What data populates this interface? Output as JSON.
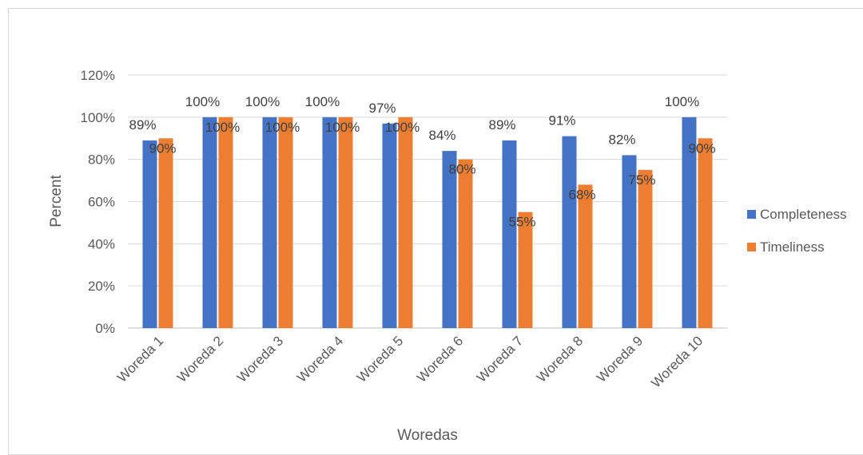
{
  "chart_data": {
    "type": "bar",
    "xlabel": "Woredas",
    "ylabel": "Percent",
    "ylim": [
      0,
      120
    ],
    "yticks": [
      "0%",
      "20%",
      "40%",
      "60%",
      "80%",
      "100%",
      "120%"
    ],
    "categories": [
      "Woreda 1",
      "Woreda 2",
      "Woreda 3",
      "Woreda 4",
      "Woreda 5",
      "Woreda 6",
      "Woreda 7",
      "Woreda 8",
      "Woreda 9",
      "Woreda 10"
    ],
    "series": [
      {
        "name": "Completeness",
        "color": "#4472c4",
        "values": [
          89,
          100,
          100,
          100,
          97,
          84,
          89,
          91,
          82,
          100
        ],
        "labels": [
          "89%",
          "100%",
          "100%",
          "100%",
          "97%",
          "84%",
          "89%",
          "91%",
          "82%",
          "100%"
        ]
      },
      {
        "name": "Timeliness",
        "color": "#ed7d31",
        "values": [
          90,
          100,
          100,
          100,
          100,
          80,
          55,
          68,
          75,
          90
        ],
        "labels": [
          "90%",
          "100%",
          "100%",
          "100%",
          "100%",
          "80%",
          "55%",
          "68%",
          "75%",
          "90%"
        ]
      }
    ],
    "grid": true,
    "legend": "right"
  }
}
